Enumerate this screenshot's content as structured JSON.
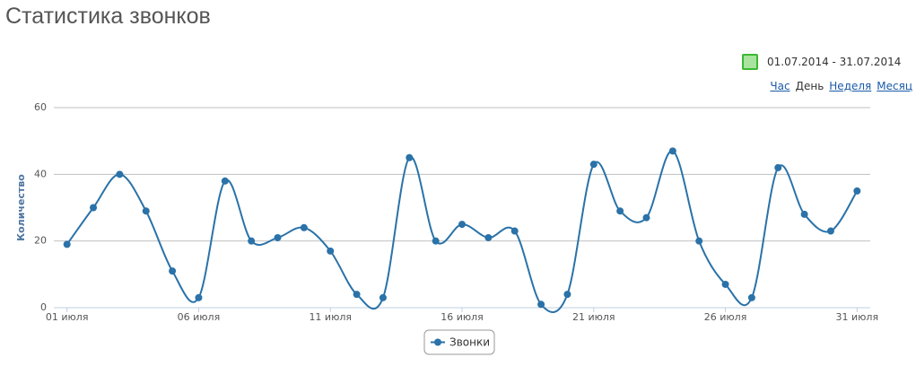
{
  "header": {
    "title": "Статистика звонков",
    "date_range": "01.07.2014 - 31.07.2014",
    "periods": [
      "Час",
      "День",
      "Неделя",
      "Месяц"
    ]
  },
  "chart_data": {
    "type": "line",
    "y_label": "Количество",
    "categories": [
      "01 июля",
      null,
      null,
      null,
      null,
      "06 июля",
      null,
      null,
      null,
      null,
      "11 июля",
      null,
      null,
      null,
      null,
      "16 июля",
      null,
      null,
      null,
      null,
      "21 июля",
      null,
      null,
      null,
      null,
      "26 июля",
      null,
      null,
      null,
      null,
      "31 июля"
    ],
    "series": [
      {
        "name": "Звонки",
        "color": "#2a72a8",
        "values": [
          19,
          30,
          40,
          29,
          11,
          3,
          38,
          20,
          21,
          24,
          17,
          4,
          3,
          45,
          20,
          25,
          21,
          23,
          1,
          4,
          43,
          29,
          27,
          47,
          20,
          7,
          3,
          42,
          28,
          23,
          35
        ]
      }
    ],
    "ylim": [
      0,
      60
    ],
    "yticks": [
      0,
      20,
      40,
      60
    ],
    "grid": true
  }
}
